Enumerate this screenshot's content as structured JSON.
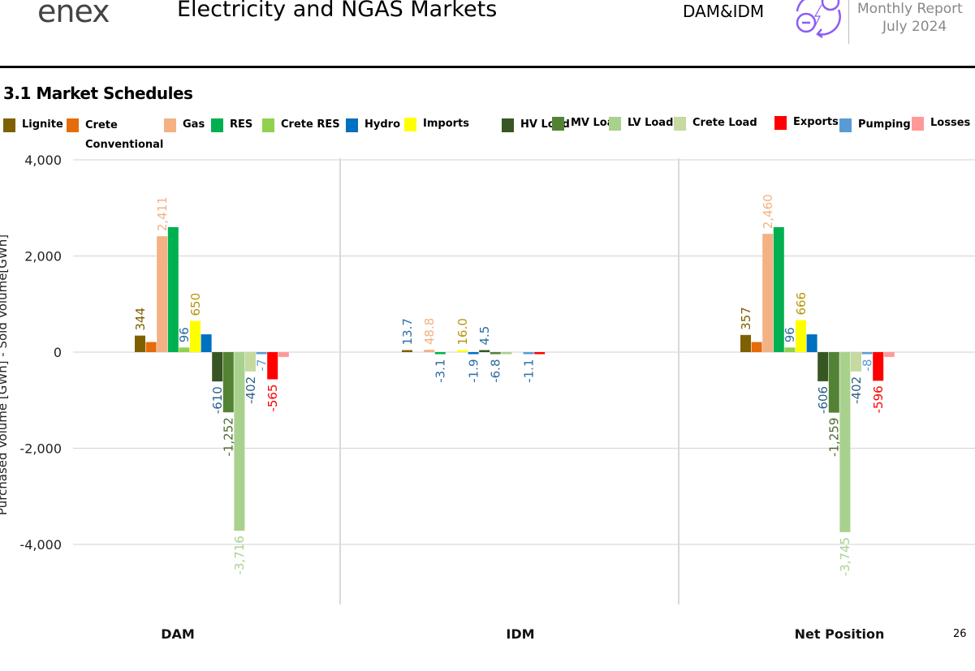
{
  "header": {
    "logo_text": "enex",
    "title": "Electricity and NGAS Markets",
    "section_tag": "DAM&IDM",
    "report_line1": "Monthly Report",
    "report_line2": "July 2024",
    "icon": "energy-exchange-icon",
    "accent": "#8b5cf6"
  },
  "section_title": "3.1 Market Schedules",
  "page_number": "26",
  "chart_data": {
    "type": "bar",
    "title": "3.1 Market Schedules",
    "ylabel": "Purchased Volume [GWh] - Sold Volume[GWh]",
    "xlabel": "",
    "ylim": [
      -5200,
      4000
    ],
    "yticks": [
      4000,
      2000,
      0,
      -2000,
      -4000
    ],
    "ytick_labels": [
      "4,000",
      "2,000",
      "0",
      "-2,000",
      "-4,000"
    ],
    "grid": true,
    "legend_position": "top",
    "categories": [
      "DAM",
      "IDM",
      "Net Position"
    ],
    "series": [
      {
        "name": "Lignite",
        "color": "#7f6000",
        "values": [
          344,
          13.7,
          357
        ],
        "labels": [
          "344",
          "13.7",
          "357"
        ],
        "label_colors": [
          "#7f6000",
          "#2e6da4",
          "#7f6000"
        ]
      },
      {
        "name": "Crete Conventional",
        "color": "#e46c0a",
        "values": [
          210,
          0,
          210
        ],
        "labels": [
          null,
          null,
          null
        ],
        "label_colors": [
          null,
          null,
          null
        ]
      },
      {
        "name": "Gas",
        "color": "#f4b183",
        "values": [
          2411,
          48.8,
          2460
        ],
        "labels": [
          "2,411",
          "48.8",
          "2,460"
        ],
        "label_colors": [
          "#f4b183",
          "#f4b183",
          "#f4b183"
        ]
      },
      {
        "name": "RES",
        "color": "#00b050",
        "values": [
          2600,
          -3.1,
          2600
        ],
        "labels": [
          null,
          "-3.1",
          null
        ],
        "label_colors": [
          null,
          "#2e6da4",
          null
        ]
      },
      {
        "name": "Crete RES",
        "color": "#92d050",
        "values": [
          96,
          0,
          96
        ],
        "labels": [
          "96",
          null,
          "96"
        ],
        "label_colors": [
          "#2e6da4",
          null,
          "#2e6da4"
        ]
      },
      {
        "name": "Hydro",
        "color": "#0070c0",
        "values": [
          370,
          -1.9,
          370
        ],
        "labels": [
          null,
          "-1.9",
          null
        ],
        "label_colors": [
          null,
          "#2e6da4",
          null
        ]
      },
      {
        "name": "Imports",
        "color": "#ffff00",
        "values": [
          650,
          16.0,
          666
        ],
        "labels": [
          "650",
          "16.0",
          "666"
        ],
        "label_colors": [
          "#b8960c",
          "#b8960c",
          "#b8960c"
        ]
      },
      {
        "name": "HV Load",
        "color": "#375623",
        "values": [
          -610,
          4.5,
          -606
        ],
        "labels": [
          "-610",
          "4.5",
          "-606"
        ],
        "label_colors": [
          "#2e5f8a",
          "#2e6da4",
          "#2e5f8a"
        ]
      },
      {
        "name": "MV Load",
        "color": "#548235",
        "values": [
          -1252,
          -6.8,
          -1259
        ],
        "labels": [
          "-1,252",
          "-6.8",
          "-1,259"
        ],
        "label_colors": [
          "#4f6b30",
          "#2e6da4",
          "#4f6b30"
        ]
      },
      {
        "name": "LV Load",
        "color": "#a9d18e",
        "values": [
          -3716,
          -3,
          -3745
        ],
        "labels": [
          "-3,716",
          null,
          "-3,745"
        ],
        "label_colors": [
          "#a9d18e",
          null,
          "#a9d18e"
        ]
      },
      {
        "name": "Crete Load",
        "color": "#c5d9a0",
        "values": [
          -402,
          0,
          -402
        ],
        "labels": [
          "-402",
          null,
          "-402"
        ],
        "label_colors": [
          "#2e5f8a",
          null,
          "#2e5f8a"
        ]
      },
      {
        "name": "Exports",
        "color": "#ff0000",
        "values": [
          -565,
          -3,
          -596
        ],
        "labels": [
          "-565",
          null,
          "-596"
        ],
        "label_colors": [
          "#ff0000",
          null,
          "#ff0000"
        ]
      },
      {
        "name": "Pumping",
        "color": "#5b9bd5",
        "values": [
          -7,
          -1.1,
          -8
        ],
        "labels": [
          "-7",
          "-1.1",
          "-8"
        ],
        "label_colors": [
          "#5b9bd5",
          "#2e6da4",
          "#5b9bd5"
        ]
      },
      {
        "name": "Losses",
        "color": "#ff9999",
        "values": [
          -100,
          0,
          -100
        ],
        "labels": [
          null,
          null,
          null
        ],
        "label_colors": [
          null,
          null,
          null
        ]
      }
    ],
    "bar_order": [
      "Lignite",
      "Crete Conventional",
      "Gas",
      "RES",
      "Crete RES",
      "Imports",
      "Hydro",
      "HV Load",
      "MV Load",
      "LV Load",
      "Crete Load",
      "Pumping",
      "Exports",
      "Losses"
    ]
  }
}
